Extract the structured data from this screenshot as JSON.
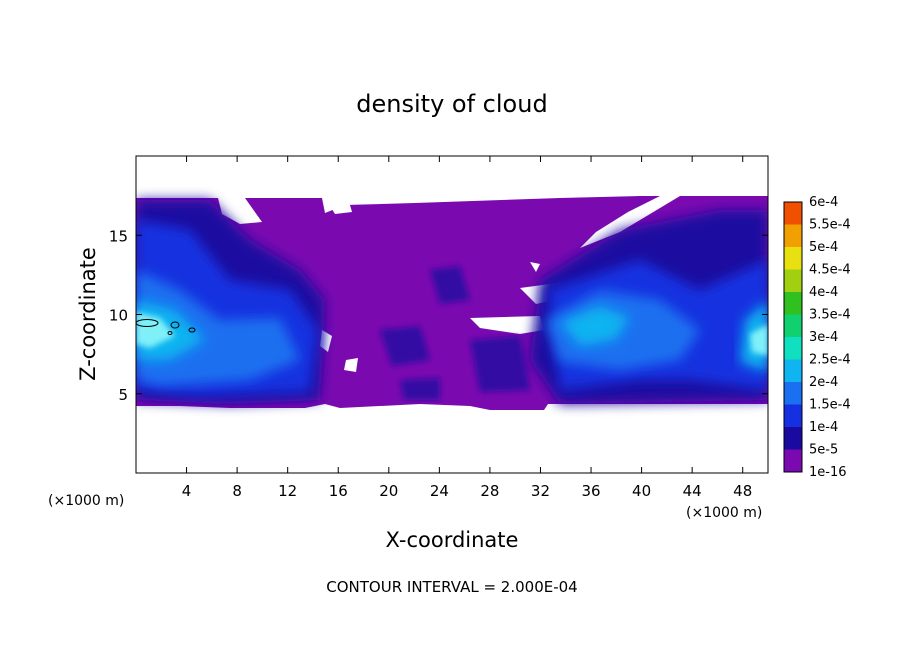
{
  "chart_data": {
    "type": "heatmap",
    "title": "density of cloud",
    "xlabel": "X-coordinate",
    "ylabel": "Z-coordinate",
    "x_unit_left": "(×1000 m)",
    "x_unit_right": "(×1000 m)",
    "xlim": [
      0,
      50
    ],
    "ylim": [
      0,
      20
    ],
    "x_ticks": [
      4,
      8,
      12,
      16,
      20,
      24,
      28,
      32,
      36,
      40,
      44,
      48
    ],
    "y_ticks": [
      5,
      10,
      15
    ],
    "footer": "CONTOUR INTERVAL = 2.000E-04",
    "colorbar": {
      "levels": [
        "1e-16",
        "5e-5",
        "1e-4",
        "1.5e-4",
        "2e-4",
        "2.5e-4",
        "3e-4",
        "3.5e-4",
        "4e-4",
        "4.5e-4",
        "5e-4",
        "5.5e-4",
        "6e-4"
      ],
      "colors": [
        "#7a0ab0",
        "#1a0aa0",
        "#1430e0",
        "#1a70f0",
        "#10b4f0",
        "#10e0c0",
        "#10d070",
        "#30c020",
        "#a0d010",
        "#e8e010",
        "#f0a000",
        "#f05000",
        "#f02000",
        "#f08080"
      ]
    },
    "cloud_regions": [
      {
        "x_range": [
          0,
          15
        ],
        "z_range": [
          4.3,
          17.3
        ],
        "density": "up to ~2e-4 near x≈1–3, z≈9"
      },
      {
        "x_range": [
          15,
          33
        ],
        "z_range": [
          4.5,
          17.3
        ],
        "density": "mostly 1e-16 with patches of 5e-5"
      },
      {
        "x_range": [
          32,
          50
        ],
        "z_range": [
          4.3,
          17.3
        ],
        "density": "up to ~2e-4 near x≈36, z≈9"
      }
    ]
  }
}
